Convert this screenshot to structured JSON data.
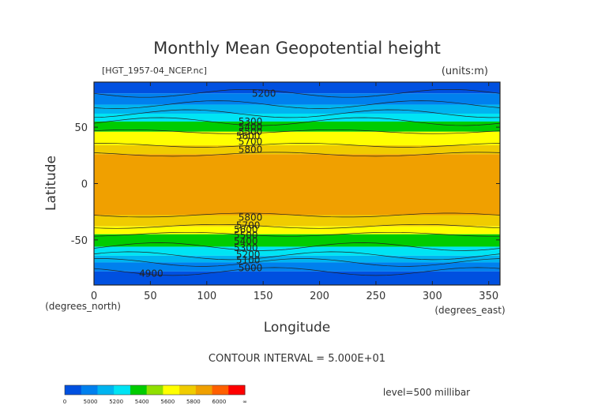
{
  "chart_data": {
    "type": "heatmap",
    "title": "Monthly Mean Geopotential height",
    "file_label": "[HGT_1957-04_NCEP.nc]",
    "units_label": "(units:m)",
    "xlabel": "Longitude",
    "ylabel": "Latitude",
    "x_unit_label": "(degrees_east)",
    "y_unit_label": "(degrees_north)",
    "xlim": [
      0,
      360
    ],
    "ylim": [
      -90,
      90
    ],
    "x_ticks": [
      0,
      50,
      100,
      150,
      200,
      250,
      300,
      350
    ],
    "y_ticks": [
      50,
      0,
      -50
    ],
    "contour_interval_text": "CONTOUR INTERVAL = 5.000E+01",
    "level_text": "level=500 millibar",
    "contour_labels": [
      {
        "text": "5200",
        "lon": 140,
        "lat": 80
      },
      {
        "text": "5300",
        "lon": 128,
        "lat": 55
      },
      {
        "text": "5400",
        "lon": 128,
        "lat": 50
      },
      {
        "text": "5500",
        "lon": 128,
        "lat": 46
      },
      {
        "text": "5600",
        "lon": 126,
        "lat": 42
      },
      {
        "text": "5700",
        "lon": 128,
        "lat": 37
      },
      {
        "text": "5800",
        "lon": 128,
        "lat": 30
      },
      {
        "text": "5800",
        "lon": 128,
        "lat": -30
      },
      {
        "text": "5700",
        "lon": 126,
        "lat": -37
      },
      {
        "text": "5600",
        "lon": 124,
        "lat": -41
      },
      {
        "text": "5500",
        "lon": 124,
        "lat": -46
      },
      {
        "text": "5400",
        "lon": 124,
        "lat": -51
      },
      {
        "text": "5300",
        "lon": 124,
        "lat": -57
      },
      {
        "text": "5200",
        "lon": 126,
        "lat": -63
      },
      {
        "text": "5100",
        "lon": 126,
        "lat": -68
      },
      {
        "text": "5000",
        "lon": 128,
        "lat": -75
      },
      {
        "text": "4900",
        "lon": 40,
        "lat": -80
      }
    ],
    "bands": [
      {
        "from_lat": 90,
        "to_lat": 80,
        "color": "#0050e0"
      },
      {
        "from_lat": 80,
        "to_lat": 70,
        "color": "#0080ee"
      },
      {
        "from_lat": 70,
        "to_lat": 62,
        "color": "#00b4f0"
      },
      {
        "from_lat": 62,
        "to_lat": 55,
        "color": "#00e4f4"
      },
      {
        "from_lat": 55,
        "to_lat": 46,
        "color": "#00cc00"
      },
      {
        "from_lat": 46,
        "to_lat": 34,
        "color": "#ffff00"
      },
      {
        "from_lat": 34,
        "to_lat": 26,
        "color": "#f0cc00"
      },
      {
        "from_lat": 26,
        "to_lat": -28,
        "color": "#f0a000"
      },
      {
        "from_lat": -28,
        "to_lat": -38,
        "color": "#f0cc00"
      },
      {
        "from_lat": -38,
        "to_lat": -45,
        "color": "#ffff00"
      },
      {
        "from_lat": -45,
        "to_lat": -56,
        "color": "#00cc00"
      },
      {
        "from_lat": -56,
        "to_lat": -64,
        "color": "#00e4f4"
      },
      {
        "from_lat": -64,
        "to_lat": -70,
        "color": "#00b4f0"
      },
      {
        "from_lat": -70,
        "to_lat": -78,
        "color": "#0080ee"
      },
      {
        "from_lat": -78,
        "to_lat": -90,
        "color": "#0050e0"
      }
    ],
    "colorbar": {
      "colors": [
        "#0050e0",
        "#0080ee",
        "#00b4f0",
        "#00e4f4",
        "#00cc00",
        "#90e000",
        "#ffff00",
        "#f0cc00",
        "#f0a000",
        "#ff6000",
        "#ff0000"
      ],
      "labels": [
        "0",
        "5000",
        "5200",
        "5400",
        "5600",
        "5800",
        "6000",
        "∞"
      ]
    }
  }
}
